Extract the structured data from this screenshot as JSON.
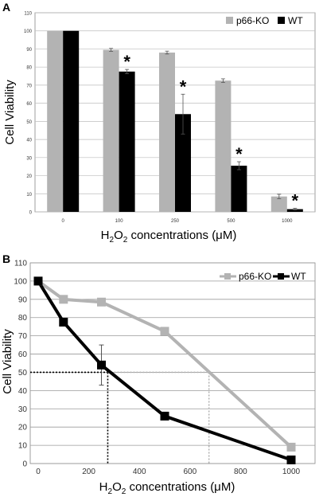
{
  "chart_data": [
    {
      "panel": "A",
      "type": "bar",
      "ylabel": "Cell Viability",
      "xlabel_main": "H",
      "xlabel_sub": "2",
      "xlabel_main2": "O",
      "xlabel_sub2": "2",
      "xlabel_rest": " concentrations (μM)",
      "ylim": [
        0,
        110
      ],
      "yticks": [
        "0",
        "10",
        "20",
        "30",
        "40",
        "50",
        "60",
        "70",
        "80",
        "90",
        "100",
        "110"
      ],
      "categories": [
        "0",
        "100",
        "250",
        "500",
        "1000"
      ],
      "series": [
        {
          "name": "p66-KO",
          "color": "#b3b3b3",
          "values": [
            100,
            89.5,
            88,
            72.5,
            8.5
          ],
          "errors": [
            0,
            0.8,
            0.8,
            1,
            1.2
          ]
        },
        {
          "name": "WT",
          "color": "#000000",
          "values": [
            100,
            77.5,
            54,
            25.5,
            1.5
          ],
          "errors": [
            0,
            1.2,
            11,
            2.2,
            0.5
          ]
        }
      ],
      "significance": [
        "",
        "*",
        "*",
        "*",
        "*"
      ],
      "legend_position": "top-right",
      "grid": true
    },
    {
      "panel": "B",
      "type": "line",
      "ylabel": "Cell Viability",
      "xlabel_main": "H",
      "xlabel_sub": "2",
      "xlabel_main2": "O",
      "xlabel_sub2": "2",
      "xlabel_rest": " concentrations (μM)",
      "xlim": [
        0,
        1000
      ],
      "ylim": [
        0,
        110
      ],
      "xticks": [
        "0",
        "200",
        "400",
        "600",
        "800",
        "1000"
      ],
      "yticks": [
        "0",
        "10",
        "20",
        "30",
        "40",
        "50",
        "60",
        "70",
        "80",
        "90",
        "100",
        "110"
      ],
      "series": [
        {
          "name": "p66-KO",
          "color": "#b3b3b3",
          "x": [
            0,
            100,
            250,
            500,
            1000
          ],
          "y": [
            100,
            90,
            88.5,
            72.5,
            9
          ]
        },
        {
          "name": "WT",
          "color": "#000000",
          "x": [
            0,
            100,
            250,
            500,
            1000
          ],
          "y": [
            100,
            77.5,
            54,
            26,
            2
          ],
          "errors": [
            0,
            0,
            11,
            0,
            0
          ]
        }
      ],
      "reference_lines": [
        {
          "y": 50,
          "x_wt": 275,
          "x_ko": 675
        }
      ],
      "legend_position": "top-right",
      "grid": true
    }
  ],
  "panel_labels": [
    "A",
    "B"
  ]
}
